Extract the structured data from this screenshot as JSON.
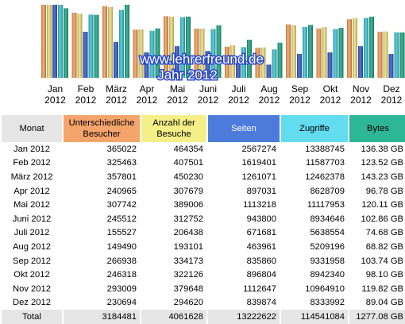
{
  "chart_data": {
    "type": "bar",
    "categories": [
      "Jan 2012",
      "Feb 2012",
      "März 2012",
      "Apr 2012",
      "Mai 2012",
      "Juni 2012",
      "Juli 2012",
      "Aug 2012",
      "Sep 2012",
      "Okt 2012",
      "Nov 2012",
      "Dez 2012"
    ],
    "category_lines": [
      [
        "Jan",
        "2012"
      ],
      [
        "Feb",
        "2012"
      ],
      [
        "März",
        "2012"
      ],
      [
        "Apr",
        "2012"
      ],
      [
        "Mai",
        "2012"
      ],
      [
        "Juni",
        "2012"
      ],
      [
        "Juli",
        "2012"
      ],
      [
        "Aug",
        "2012"
      ],
      [
        "Sep",
        "2012"
      ],
      [
        "Okt",
        "2012"
      ],
      [
        "Nov",
        "2012"
      ],
      [
        "Dez",
        "2012"
      ]
    ],
    "series": [
      {
        "name": "Unterschiedliche Besucher",
        "color": "#f5a15a",
        "values": [
          365022,
          325463,
          357801,
          240965,
          307742,
          245512,
          155527,
          149490,
          266938,
          246318,
          293009,
          230694
        ]
      },
      {
        "name": "Anzahl der Besuche",
        "color": "#efe07f",
        "values": [
          464354,
          407501,
          450230,
          307679,
          389006,
          312752,
          206438,
          193101,
          334173,
          322126,
          379648,
          294620
        ]
      },
      {
        "name": "Seiten",
        "color": "#3a5cc6",
        "values": [
          2567274,
          1619401,
          1261071,
          897031,
          1113218,
          943800,
          671681,
          463961,
          835860,
          896804,
          1112647,
          839874
        ]
      },
      {
        "name": "Zugriffe",
        "color": "#3fc6d6",
        "values": [
          13388745,
          11587703,
          12462378,
          8628709,
          11117953,
          8934646,
          5638554,
          5209196,
          9331958,
          8942340,
          10964910,
          8333992
        ]
      },
      {
        "name": "Bytes",
        "color": "#20a886",
        "values": [
          136.38,
          123.52,
          143.23,
          96.78,
          120.11,
          102.86,
          74.68,
          68.82,
          103.74,
          98.1,
          119.82,
          89.04
        ]
      }
    ]
  },
  "watermark": {
    "line1": "www.lehrerfreund.de",
    "line2": "Jahr 2012"
  },
  "table": {
    "headers": {
      "month": "Monat",
      "visitors": [
        "Unterschiedliche",
        "Besucher"
      ],
      "visits": [
        "Anzahl der",
        "Besuche"
      ],
      "pages": "Seiten",
      "hits": "Zugriffe",
      "bytes": "Bytes"
    },
    "rows": [
      [
        "Jan 2012",
        "365022",
        "464354",
        "2567274",
        "13388745",
        "136.38 GB"
      ],
      [
        "Feb 2012",
        "325463",
        "407501",
        "1619401",
        "11587703",
        "123.52 GB"
      ],
      [
        "März 2012",
        "357801",
        "450230",
        "1261071",
        "12462378",
        "143.23 GB"
      ],
      [
        "Apr 2012",
        "240965",
        "307679",
        "897031",
        "8628709",
        "96.78 GB"
      ],
      [
        "Mai 2012",
        "307742",
        "389006",
        "1113218",
        "11117953",
        "120.11 GB"
      ],
      [
        "Juni 2012",
        "245512",
        "312752",
        "943800",
        "8934646",
        "102.86 GB"
      ],
      [
        "Juli 2012",
        "155527",
        "206438",
        "671681",
        "5638554",
        "74.68 GB"
      ],
      [
        "Aug 2012",
        "149490",
        "193101",
        "463961",
        "5209196",
        "68.82 GB"
      ],
      [
        "Sep 2012",
        "266938",
        "334173",
        "835860",
        "9331958",
        "103.74 GB"
      ],
      [
        "Okt 2012",
        "246318",
        "322126",
        "896804",
        "8942340",
        "98.10 GB"
      ],
      [
        "Nov 2012",
        "293009",
        "379648",
        "1112647",
        "10964910",
        "119.82 GB"
      ],
      [
        "Dez 2012",
        "230694",
        "294620",
        "839874",
        "8333992",
        "89.04 GB"
      ]
    ],
    "total": [
      "Total",
      "3184481",
      "4061628",
      "13222622",
      "114541084",
      "1277.08 GB"
    ]
  }
}
